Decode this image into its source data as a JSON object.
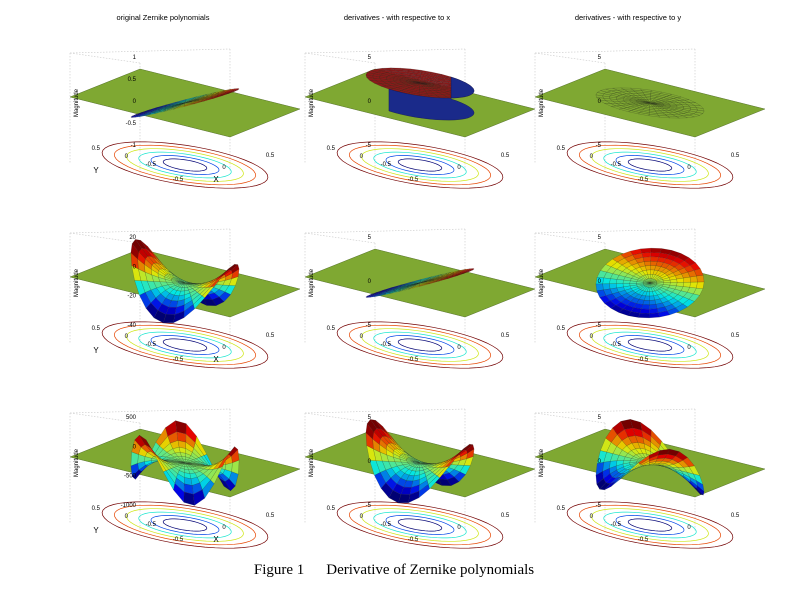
{
  "figure": {
    "caption_label": "Figure 1",
    "caption_text": "Derivative of Zernike polynomials"
  },
  "columns": [
    "original Zernike polynomials",
    "derivatives - with respective to x",
    "derivatives - with respective to y"
  ],
  "colors": {
    "plane": "#7fa832",
    "plane_line": "#3d5a14",
    "floor_grid": "#c8c8c8",
    "box": "#222222"
  },
  "chart_data": [
    {
      "type": "surface",
      "row": 0,
      "col": 0,
      "title": "original Zernike polynomials",
      "zlabel": "Magnitude",
      "xlabel": "X",
      "ylabel": "Y",
      "zticks": [
        "1",
        "0.5",
        "0",
        "-0.5",
        "-1"
      ],
      "xticks": [
        "-0.5",
        "0",
        "0.5"
      ],
      "yticks": [
        "0.5",
        "0",
        "-0.5"
      ],
      "shape": "tilt-x"
    },
    {
      "type": "surface",
      "row": 0,
      "col": 1,
      "title": "derivatives - with respective to x",
      "zlabel": "Magnitude",
      "zticks": [
        "5",
        "0",
        "-5"
      ],
      "xticks": [
        "-0.5",
        "0",
        "0.5"
      ],
      "yticks": [
        "0.5",
        "0",
        "-0.5"
      ],
      "shape": "plateau"
    },
    {
      "type": "surface",
      "row": 0,
      "col": 2,
      "title": "derivatives - with respective to y",
      "zlabel": "Magnitude",
      "zticks": [
        "5",
        "0",
        "-5"
      ],
      "xticks": [
        "-0.5",
        "0",
        "0.5"
      ],
      "yticks": [
        "0.5",
        "0",
        "-0.5"
      ],
      "shape": "flat"
    },
    {
      "type": "surface",
      "row": 1,
      "col": 0,
      "zlabel": "Magnitude",
      "xlabel": "X",
      "ylabel": "Y",
      "zticks": [
        "20",
        "0",
        "-20",
        "-40"
      ],
      "xticks": [
        "-0.5",
        "0",
        "0.5"
      ],
      "yticks": [
        "0.5",
        "0",
        "-0.5"
      ],
      "shape": "saddle"
    },
    {
      "type": "surface",
      "row": 1,
      "col": 1,
      "zlabel": "Magnitude",
      "zticks": [
        "5",
        "0",
        "-5"
      ],
      "xticks": [
        "-0.5",
        "0",
        "0.5"
      ],
      "yticks": [
        "0.5",
        "0",
        "-0.5"
      ],
      "shape": "tilt-x"
    },
    {
      "type": "surface",
      "row": 1,
      "col": 2,
      "zlabel": "Magnitude",
      "zticks": [
        "5",
        "0",
        "-5"
      ],
      "xticks": [
        "-0.5",
        "0",
        "0.5"
      ],
      "yticks": [
        "0.5",
        "0",
        "-0.5"
      ],
      "shape": "tilt-y"
    },
    {
      "type": "surface",
      "row": 2,
      "col": 0,
      "zlabel": "Magnitude",
      "xlabel": "X",
      "ylabel": "Y",
      "zticks": [
        "500",
        "0",
        "-500",
        "-1000"
      ],
      "xticks": [
        "-0.5",
        "0",
        "0.5"
      ],
      "yticks": [
        "0.5",
        "0",
        "-0.5"
      ],
      "shape": "trefoil"
    },
    {
      "type": "surface",
      "row": 2,
      "col": 1,
      "zlabel": "Magnitude",
      "zticks": [
        "5",
        "0",
        "-5"
      ],
      "xticks": [
        "-0.5",
        "0",
        "0.5"
      ],
      "yticks": [
        "0.5",
        "0",
        "-0.5"
      ],
      "shape": "saddle"
    },
    {
      "type": "surface",
      "row": 2,
      "col": 2,
      "zlabel": "Magnitude",
      "zticks": [
        "5",
        "0",
        "-5"
      ],
      "xticks": [
        "-0.5",
        "0",
        "0.5"
      ],
      "yticks": [
        "0.5",
        "0",
        "-0.5"
      ],
      "shape": "twist"
    }
  ]
}
